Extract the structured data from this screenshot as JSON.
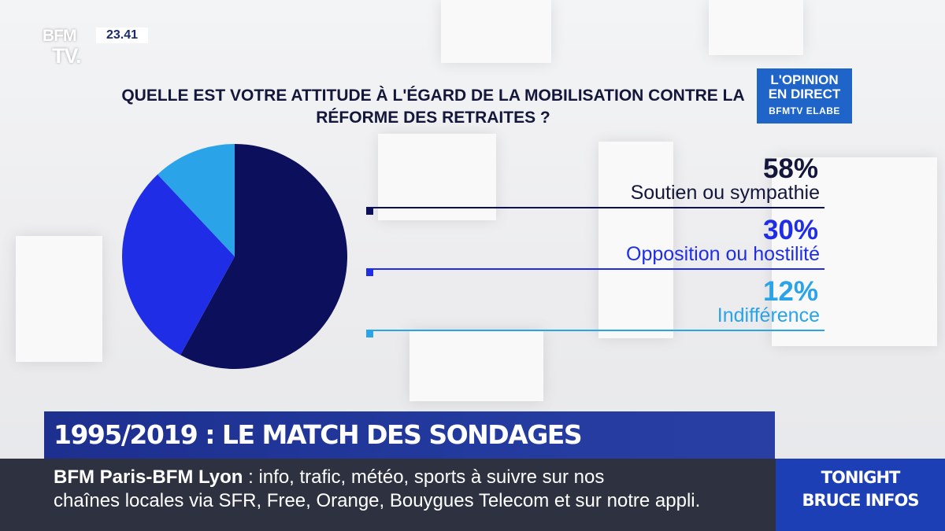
{
  "channel": {
    "logo_line1": "BFM",
    "logo_line2": "TV.",
    "clock": "23.41"
  },
  "badge": {
    "line1": "L'OPINION",
    "line2": "EN DIRECT",
    "line3": "BFMTV ELABE"
  },
  "chart_data": {
    "type": "pie",
    "title": "QUELLE EST VOTRE ATTITUDE À L'ÉGARD DE LA MOBILISATION CONTRE LA RÉFORME DES RETRAITES ?",
    "slices": [
      {
        "label": "Soutien ou sympathie",
        "value": 58,
        "display": "58%",
        "color": "#0b0f5c"
      },
      {
        "label": "Opposition ou hostilité",
        "value": 30,
        "display": "30%",
        "color": "#1f2ee6"
      },
      {
        "label": "Indifférence",
        "value": 12,
        "display": "12%",
        "color": "#2aa3e8"
      }
    ],
    "legend_placement": "right"
  },
  "headline": "1995/2019 : LE MATCH DES SONDAGES",
  "ticker": {
    "source": "BFM Paris-BFM Lyon",
    "separator": " : ",
    "line1_text": "info, trafic, météo, sports à suivre sur nos",
    "line2_text": "chaînes locales via SFR, Free, Orange, Bouygues Telecom et sur notre appli."
  },
  "promo": {
    "line1": "TONIGHT",
    "line2": "BRUCE INFOS"
  }
}
